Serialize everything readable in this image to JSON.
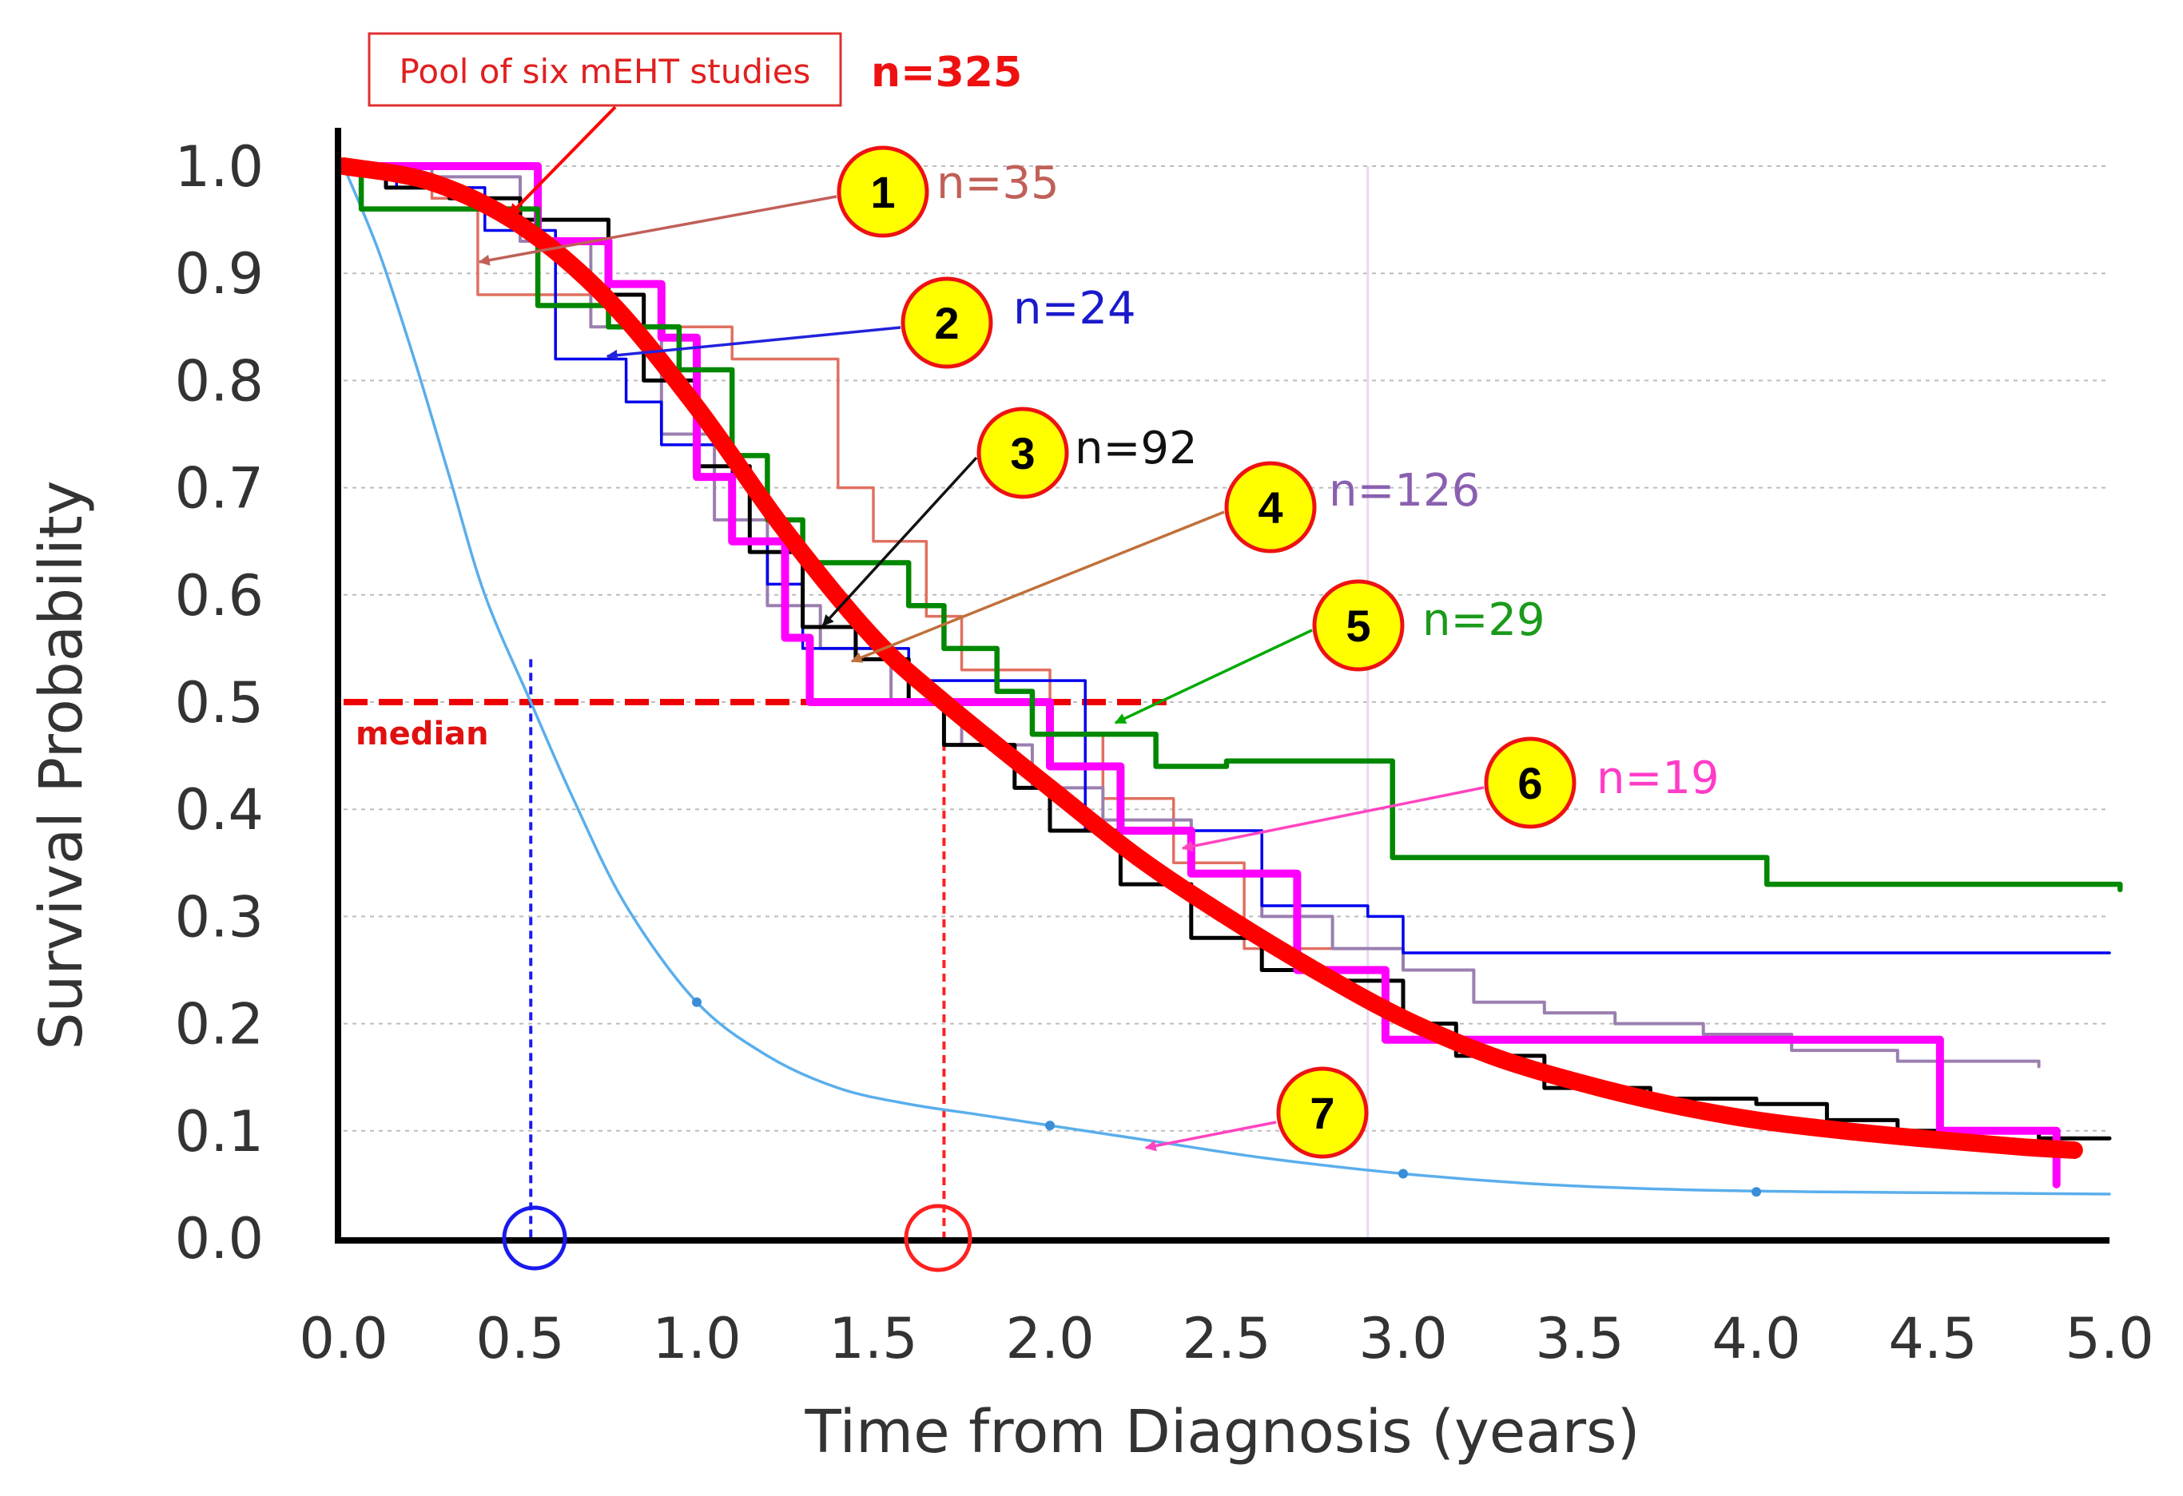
{
  "chart_data": {
    "type": "line",
    "title": "",
    "xlabel": "Time from Diagnosis  (years)",
    "ylabel": "Survival Probability",
    "xlim": [
      0,
      5
    ],
    "ylim": [
      0,
      1
    ],
    "x_ticks": [
      "0.0",
      "0.5",
      "1.0",
      "1.5",
      "2.0",
      "2.5",
      "3.0",
      "3.5",
      "4.0",
      "4.5",
      "5.0"
    ],
    "y_ticks": [
      "0.0",
      "0.1",
      "0.2",
      "0.3",
      "0.4",
      "0.5",
      "0.6",
      "0.7",
      "0.8",
      "0.9",
      "1.0"
    ],
    "median": {
      "label": "median",
      "survival": 0.5,
      "pooled_time": 1.7,
      "control_time": 0.53
    },
    "pool_label": "Pool of six mEHT studies",
    "pool_n": "n=325",
    "series": [
      {
        "name": "Pool of six mEHT studies (fit)",
        "color": "#ff0000",
        "style": "smooth",
        "x": [
          0,
          0.25,
          0.5,
          0.75,
          1.0,
          1.25,
          1.5,
          1.7,
          2.0,
          2.25,
          2.5,
          2.75,
          3.0,
          3.25,
          3.5,
          3.75,
          4.0,
          4.25,
          4.5,
          4.75,
          4.9
        ],
        "y": [
          1.0,
          0.985,
          0.945,
          0.875,
          0.775,
          0.66,
          0.56,
          0.5,
          0.42,
          0.355,
          0.3,
          0.25,
          0.205,
          0.17,
          0.145,
          0.125,
          0.11,
          0.1,
          0.092,
          0.085,
          0.082
        ]
      },
      {
        "name": "1",
        "n": "n=35",
        "color": "#e07060",
        "style": "step",
        "x": [
          0,
          0.25,
          0.38,
          0.6,
          0.75,
          0.9,
          1.1,
          1.3,
          1.4,
          1.5,
          1.6,
          1.65,
          1.75,
          1.85,
          2.0,
          2.15,
          2.35,
          2.55,
          2.75,
          2.9
        ],
        "y": [
          1.0,
          0.97,
          0.88,
          0.88,
          0.85,
          0.85,
          0.82,
          0.82,
          0.7,
          0.65,
          0.65,
          0.58,
          0.53,
          0.53,
          0.47,
          0.41,
          0.35,
          0.27,
          0.27,
          0.27
        ]
      },
      {
        "name": "2",
        "n": "n=24",
        "color": "#0000ee",
        "style": "step",
        "x": [
          0,
          0.15,
          0.4,
          0.6,
          0.8,
          0.9,
          1.1,
          1.2,
          1.3,
          1.6,
          2.0,
          2.1,
          2.35,
          2.6,
          2.9,
          3.0,
          5.0
        ],
        "y": [
          1.0,
          0.98,
          0.94,
          0.82,
          0.78,
          0.74,
          0.65,
          0.61,
          0.55,
          0.52,
          0.52,
          0.38,
          0.38,
          0.31,
          0.3,
          0.266,
          0.266
        ]
      },
      {
        "name": "3",
        "n": "n=92",
        "color": "#000000",
        "style": "step",
        "x": [
          0,
          0.12,
          0.3,
          0.5,
          0.75,
          0.85,
          1.0,
          1.15,
          1.3,
          1.45,
          1.6,
          1.7,
          1.9,
          2.0,
          2.2,
          2.4,
          2.6,
          2.8,
          3.0,
          3.15,
          3.4,
          3.7,
          4.0,
          4.2,
          4.4,
          4.8,
          5.0
        ],
        "y": [
          1.0,
          0.98,
          0.97,
          0.95,
          0.88,
          0.8,
          0.72,
          0.64,
          0.57,
          0.54,
          0.5,
          0.46,
          0.42,
          0.38,
          0.33,
          0.28,
          0.25,
          0.24,
          0.2,
          0.17,
          0.14,
          0.13,
          0.125,
          0.11,
          0.1,
          0.093,
          0.093
        ]
      },
      {
        "name": "4",
        "n": "n=126",
        "color": "#9b7fb0",
        "style": "step",
        "x": [
          0,
          0.25,
          0.5,
          0.7,
          0.9,
          1.05,
          1.2,
          1.35,
          1.55,
          1.75,
          1.95,
          2.15,
          2.4,
          2.6,
          2.8,
          3.0,
          3.2,
          3.4,
          3.6,
          3.85,
          4.1,
          4.4,
          4.8
        ],
        "y": [
          1.0,
          0.99,
          0.93,
          0.85,
          0.75,
          0.67,
          0.59,
          0.55,
          0.5,
          0.46,
          0.42,
          0.39,
          0.34,
          0.3,
          0.27,
          0.25,
          0.22,
          0.21,
          0.2,
          0.19,
          0.175,
          0.165,
          0.16
        ]
      },
      {
        "name": "5",
        "n": "n=29",
        "color": "#008800",
        "style": "step",
        "x": [
          0,
          0.05,
          0.3,
          0.55,
          0.75,
          0.95,
          1.1,
          1.2,
          1.3,
          1.6,
          1.7,
          1.85,
          1.95,
          2.3,
          2.5,
          2.85,
          2.97,
          4.03,
          5.03
        ],
        "y": [
          1.0,
          0.96,
          0.96,
          0.87,
          0.85,
          0.81,
          0.73,
          0.67,
          0.63,
          0.59,
          0.55,
          0.51,
          0.47,
          0.44,
          0.445,
          0.445,
          0.355,
          0.33,
          0.325
        ]
      },
      {
        "name": "6",
        "n": "n=19",
        "color": "#ff00ff",
        "style": "step",
        "x": [
          0,
          0.3,
          0.55,
          0.75,
          0.9,
          1.0,
          1.1,
          1.25,
          1.32,
          1.7,
          2.0,
          2.2,
          2.4,
          2.7,
          2.95,
          3.2,
          3.5,
          4.52,
          4.85
        ],
        "y": [
          1.0,
          1.0,
          0.93,
          0.89,
          0.84,
          0.71,
          0.65,
          0.56,
          0.5,
          0.5,
          0.44,
          0.38,
          0.34,
          0.25,
          0.185,
          0.185,
          0.185,
          0.1,
          0.05
        ]
      },
      {
        "name": "7",
        "n": "",
        "color": "#5aaeec",
        "style": "smooth",
        "x": [
          0,
          0.1,
          0.2,
          0.3,
          0.4,
          0.53,
          0.65,
          0.8,
          1.0,
          1.2,
          1.4,
          1.6,
          1.8,
          2.0,
          2.3,
          2.6,
          3.0,
          3.4,
          3.8,
          4.2,
          4.6,
          5.0
        ],
        "y": [
          1.0,
          0.92,
          0.82,
          0.71,
          0.6,
          0.5,
          0.41,
          0.31,
          0.22,
          0.17,
          0.14,
          0.125,
          0.115,
          0.105,
          0.09,
          0.075,
          0.06,
          0.05,
          0.045,
          0.043,
          0.042,
          0.041
        ]
      }
    ],
    "badges": [
      {
        "label": "1",
        "n": "n=35",
        "n_color": "#c06058"
      },
      {
        "label": "2",
        "n": "n=24",
        "n_color": "#1a1acc"
      },
      {
        "label": "3",
        "n": "n=92",
        "n_color": "#111111"
      },
      {
        "label": "4",
        "n": "n=126",
        "n_color": "#8a5fb0"
      },
      {
        "label": "5",
        "n": "n=29",
        "n_color": "#1a9a1a"
      },
      {
        "label": "6",
        "n": "n=19",
        "n_color": "#ff3cc8"
      },
      {
        "label": "7",
        "n": "",
        "n_color": "#ff3cc8"
      }
    ]
  }
}
